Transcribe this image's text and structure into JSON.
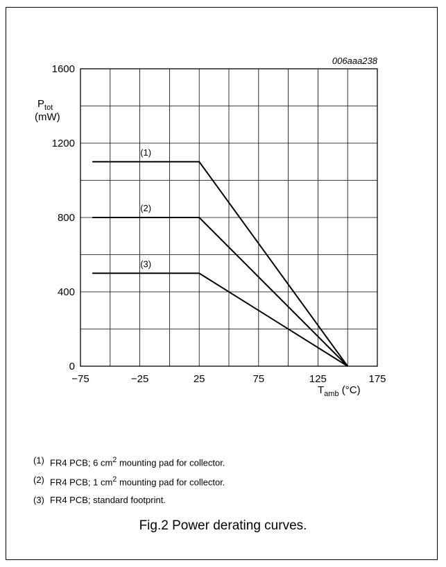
{
  "chart_data": {
    "type": "line",
    "code": "006aaa238",
    "ylabel": "P",
    "ylabel_sub": "tot",
    "yunit": "(mW)",
    "xlabel": "T",
    "xlabel_sub": "amb",
    "xunit": "(°C)",
    "xlim": [
      -75,
      175
    ],
    "ylim": [
      0,
      1600
    ],
    "x_ticks": [
      -75,
      -25,
      25,
      75,
      125,
      175
    ],
    "x_tick_labels": [
      "−75",
      "−25",
      "25",
      "75",
      "125",
      "175"
    ],
    "y_ticks": [
      0,
      400,
      800,
      1200,
      1600
    ],
    "x_grid": [
      -75,
      -50,
      -25,
      0,
      25,
      50,
      75,
      100,
      125,
      150,
      175
    ],
    "y_grid": [
      0,
      200,
      400,
      600,
      800,
      1000,
      1200,
      1400,
      1600
    ],
    "grid": true,
    "series": [
      {
        "name": "(1)",
        "points": [
          [
            -65,
            1100
          ],
          [
            25,
            1100
          ],
          [
            150,
            0
          ]
        ]
      },
      {
        "name": "(2)",
        "points": [
          [
            -65,
            800
          ],
          [
            25,
            800
          ],
          [
            150,
            0
          ]
        ]
      },
      {
        "name": "(3)",
        "points": [
          [
            -65,
            500
          ],
          [
            25,
            500
          ],
          [
            150,
            0
          ]
        ]
      }
    ]
  },
  "notes": [
    {
      "num": "(1)",
      "pre": "FR4 PCB; 6 cm",
      "sup": "2",
      "post": " mounting pad for collector."
    },
    {
      "num": "(2)",
      "pre": "FR4 PCB; 1 cm",
      "sup": "2",
      "post": " mounting pad for collector."
    },
    {
      "num": "(3)",
      "pre": "FR4 PCB; standard footprint.",
      "sup": "",
      "post": ""
    }
  ],
  "caption": "Fig.2  Power derating curves."
}
